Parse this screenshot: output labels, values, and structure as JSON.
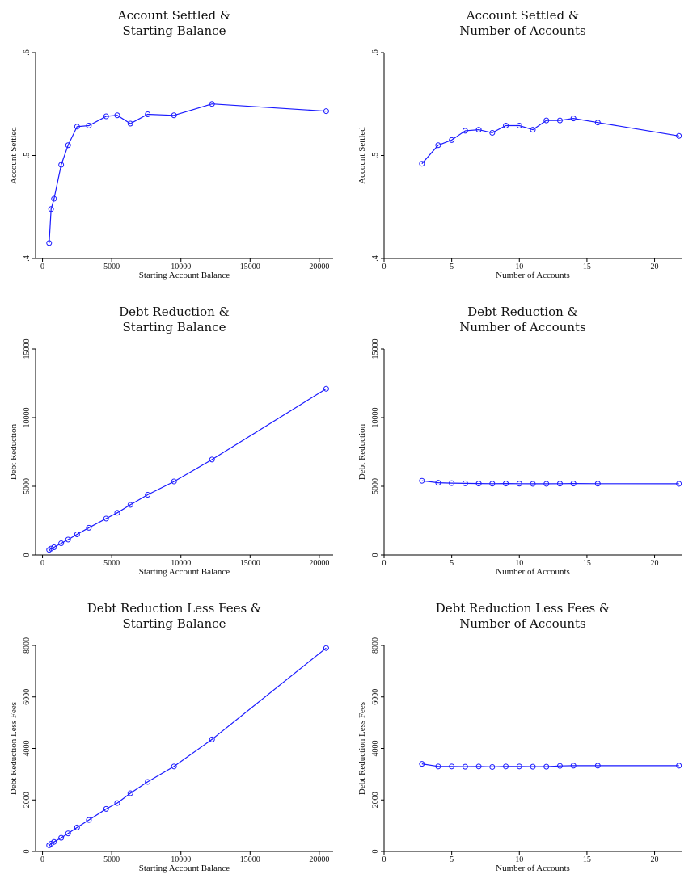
{
  "chart_data": [
    {
      "type": "line",
      "title": [
        "Account Settled &",
        "Starting Balance"
      ],
      "xlabel": "Starting Account Balance",
      "ylabel": "Account Settled",
      "xlim": [
        -500,
        21000
      ],
      "ylim": [
        0.4,
        0.6
      ],
      "xticks": [
        0,
        5000,
        10000,
        15000,
        20000
      ],
      "xticklabels": [
        "0",
        "5000",
        "10000",
        "15000",
        "20000"
      ],
      "yticks": [
        0.4,
        0.5,
        0.6
      ],
      "yticklabels": [
        ".4",
        ".5",
        ".6"
      ],
      "color": "#1a1aff",
      "grid": false,
      "series": [
        {
          "x": [
            480,
            620,
            830,
            1350,
            1850,
            2500,
            3350,
            4600,
            5400,
            6350,
            7600,
            9500,
            12250,
            20500
          ],
          "y": [
            0.415,
            0.448,
            0.458,
            0.491,
            0.51,
            0.528,
            0.529,
            0.538,
            0.539,
            0.531,
            0.54,
            0.539,
            0.55,
            0.543
          ]
        }
      ]
    },
    {
      "type": "line",
      "title": [
        "Account Settled &",
        "Number of Accounts"
      ],
      "xlabel": "Number of Accounts",
      "ylabel": "Account Settled",
      "xlim": [
        0,
        22
      ],
      "ylim": [
        0.4,
        0.6
      ],
      "xticks": [
        0,
        5,
        10,
        15,
        20
      ],
      "xticklabels": [
        "0",
        "5",
        "10",
        "15",
        "20"
      ],
      "yticks": [
        0.4,
        0.5,
        0.6
      ],
      "yticklabels": [
        ".4",
        ".5",
        ".6"
      ],
      "color": "#1a1aff",
      "grid": false,
      "series": [
        {
          "x": [
            2.8,
            4,
            5,
            6,
            7,
            8,
            9,
            10,
            11,
            12,
            13,
            14,
            15.8,
            21.8
          ],
          "y": [
            0.492,
            0.51,
            0.515,
            0.524,
            0.525,
            0.522,
            0.529,
            0.529,
            0.525,
            0.534,
            0.534,
            0.536,
            0.532,
            0.519
          ]
        }
      ]
    },
    {
      "type": "line",
      "title": [
        "Debt Reduction &",
        "Starting Balance"
      ],
      "xlabel": "Starting Account Balance",
      "ylabel": "Debt Reduction",
      "xlim": [
        -500,
        21000
      ],
      "ylim": [
        0,
        15000
      ],
      "xticks": [
        0,
        5000,
        10000,
        15000,
        20000
      ],
      "xticklabels": [
        "0",
        "5000",
        "10000",
        "15000",
        "20000"
      ],
      "yticks": [
        0,
        5000,
        10000,
        15000
      ],
      "yticklabels": [
        "0",
        "5000",
        "10000",
        "15000"
      ],
      "color": "#1a1aff",
      "grid": false,
      "series": [
        {
          "x": [
            480,
            620,
            830,
            1350,
            1850,
            2500,
            3350,
            4600,
            5400,
            6350,
            7600,
            9500,
            12250,
            20500
          ],
          "y": [
            370,
            460,
            560,
            850,
            1120,
            1500,
            1980,
            2650,
            3070,
            3650,
            4380,
            5350,
            6950,
            12100
          ]
        }
      ]
    },
    {
      "type": "line",
      "title": [
        "Debt Reduction &",
        "Number of Accounts"
      ],
      "xlabel": "Number of Accounts",
      "ylabel": "Debt Reduction",
      "xlim": [
        0,
        22
      ],
      "ylim": [
        0,
        15000
      ],
      "xticks": [
        0,
        5,
        10,
        15,
        20
      ],
      "xticklabels": [
        "0",
        "5",
        "10",
        "15",
        "20"
      ],
      "yticks": [
        0,
        5000,
        10000,
        15000
      ],
      "yticklabels": [
        "0",
        "5000",
        "10000",
        "15000"
      ],
      "color": "#1a1aff",
      "grid": false,
      "series": [
        {
          "x": [
            2.8,
            4,
            5,
            6,
            7,
            8,
            9,
            10,
            11,
            12,
            13,
            14,
            15.8,
            21.8
          ],
          "y": [
            5400,
            5260,
            5230,
            5210,
            5200,
            5190,
            5200,
            5190,
            5180,
            5180,
            5190,
            5200,
            5190,
            5180
          ]
        }
      ]
    },
    {
      "type": "line",
      "title": [
        "Debt Reduction Less Fees &",
        "Starting Balance"
      ],
      "xlabel": "Starting Account Balance",
      "ylabel": "Debt Reduction Less Fees",
      "xlim": [
        -500,
        21000
      ],
      "ylim": [
        0,
        8000
      ],
      "xticks": [
        0,
        5000,
        10000,
        15000,
        20000
      ],
      "xticklabels": [
        "0",
        "5000",
        "10000",
        "15000",
        "20000"
      ],
      "yticks": [
        0,
        2000,
        4000,
        6000,
        8000
      ],
      "yticklabels": [
        "0",
        "2000",
        "4000",
        "6000",
        "8000"
      ],
      "color": "#1a1aff",
      "grid": false,
      "series": [
        {
          "x": [
            480,
            620,
            830,
            1350,
            1850,
            2500,
            3350,
            4600,
            5400,
            6350,
            7600,
            9500,
            12250,
            20500
          ],
          "y": [
            240,
            300,
            370,
            530,
            700,
            930,
            1220,
            1650,
            1880,
            2260,
            2700,
            3300,
            4350,
            7900
          ]
        }
      ]
    },
    {
      "type": "line",
      "title": [
        "Debt Reduction Less Fees &",
        "Number of Accounts"
      ],
      "xlabel": "Number of Accounts",
      "ylabel": "Debt Reduction Less Fees",
      "xlim": [
        0,
        22
      ],
      "ylim": [
        0,
        8000
      ],
      "xticks": [
        0,
        5,
        10,
        15,
        20
      ],
      "xticklabels": [
        "0",
        "5",
        "10",
        "15",
        "20"
      ],
      "yticks": [
        0,
        2000,
        4000,
        6000,
        8000
      ],
      "yticklabels": [
        "0",
        "2000",
        "4000",
        "6000",
        "8000"
      ],
      "color": "#1a1aff",
      "grid": false,
      "series": [
        {
          "x": [
            2.8,
            4,
            5,
            6,
            7,
            8,
            9,
            10,
            11,
            12,
            13,
            14,
            15.8,
            21.8
          ],
          "y": [
            3400,
            3300,
            3300,
            3290,
            3300,
            3280,
            3300,
            3300,
            3290,
            3290,
            3320,
            3330,
            3330,
            3330
          ]
        }
      ]
    }
  ]
}
